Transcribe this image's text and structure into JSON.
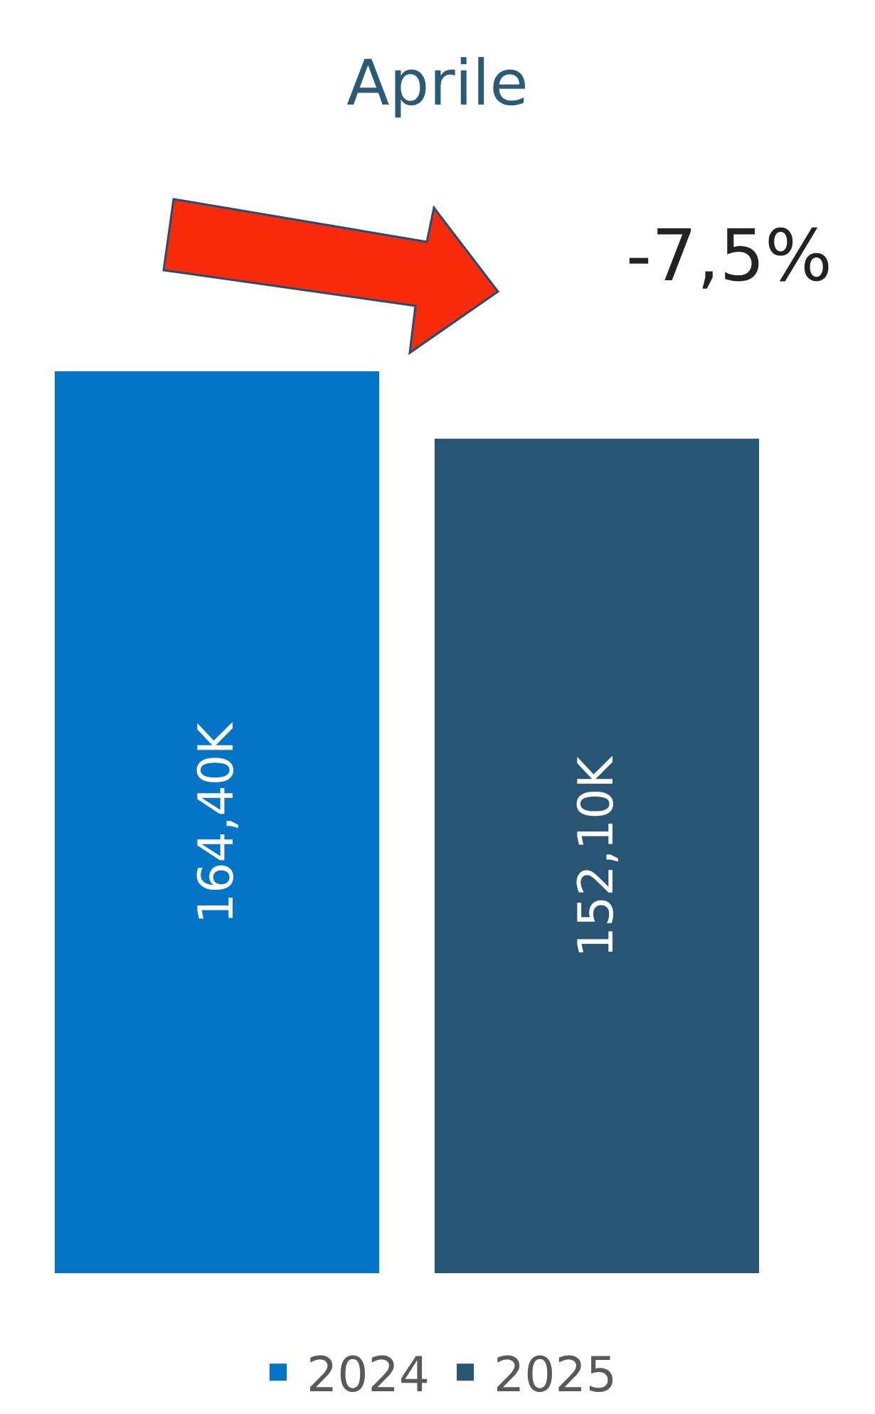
{
  "chart_data": {
    "type": "bar",
    "title": "Aprile",
    "categories": [
      null
    ],
    "series": [
      {
        "name": "2024",
        "color": "#0474c6",
        "values": [
          164.4
        ],
        "value_labels": [
          "164,40K"
        ]
      },
      {
        "name": "2025",
        "color": "#275573",
        "values": [
          152.1
        ],
        "value_labels": [
          "152,10K"
        ]
      }
    ],
    "annotations": [
      "-7,5%"
    ],
    "legend": "bottom",
    "tick_labels": false
  }
}
